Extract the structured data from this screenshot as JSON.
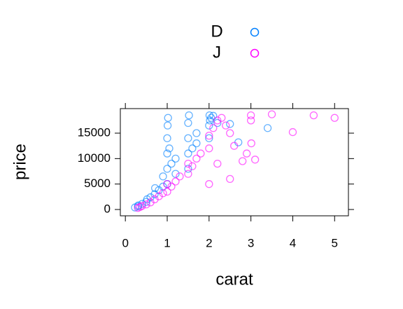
{
  "chart_data": {
    "type": "scatter",
    "x_label": "carat",
    "y_label": "price",
    "xlim": [
      -0.12,
      5.33
    ],
    "ylim": [
      -1240,
      19820
    ],
    "xticks": [
      0,
      1,
      2,
      3,
      4,
      5
    ],
    "yticks": [
      0,
      5000,
      10000,
      15000
    ],
    "series": [
      {
        "name": "D",
        "color": "#0080ff",
        "x": [
          0.23,
          0.3,
          0.31,
          0.4,
          0.5,
          0.52,
          0.6,
          0.7,
          0.71,
          0.8,
          0.9,
          0.9,
          1.0,
          1.0,
          1.0,
          1.0,
          1.01,
          1.02,
          1.05,
          1.1,
          1.2,
          1.2,
          1.5,
          1.5,
          1.5,
          1.5,
          1.52,
          1.6,
          1.7,
          1.7,
          2.0,
          2.0,
          2.01,
          2.02,
          2.05,
          2.1,
          2.2,
          2.5,
          2.7,
          3.4
        ],
        "values": [
          400,
          600,
          800,
          1100,
          1500,
          2000,
          2400,
          3000,
          4200,
          3800,
          4500,
          6500,
          5000,
          8000,
          11000,
          14000,
          16500,
          18000,
          12000,
          9000,
          10000,
          7000,
          8000,
          11000,
          14000,
          17000,
          18500,
          12000,
          13000,
          15000,
          14000,
          16500,
          18500,
          17500,
          18000,
          18400,
          17000,
          16800,
          13200,
          16000
        ]
      },
      {
        "name": "J",
        "color": "#ff00ff",
        "x": [
          0.3,
          0.35,
          0.4,
          0.5,
          0.6,
          0.7,
          0.8,
          0.9,
          1.0,
          1.0,
          1.1,
          1.2,
          1.3,
          1.5,
          1.5,
          1.6,
          1.7,
          1.8,
          2.0,
          2.0,
          2.0,
          2.1,
          2.2,
          2.3,
          2.4,
          2.5,
          2.5,
          2.8,
          2.9,
          3.0,
          3.0,
          3.01,
          3.1,
          3.5,
          4.0,
          4.5,
          5.0,
          2.2,
          2.6
        ],
        "values": [
          300,
          500,
          700,
          1000,
          1400,
          2000,
          2600,
          3200,
          3500,
          5000,
          4500,
          5500,
          6500,
          7000,
          9000,
          8500,
          10000,
          11000,
          12000,
          14500,
          5000,
          16000,
          17500,
          18000,
          16500,
          15000,
          6000,
          9500,
          11000,
          17500,
          18500,
          13000,
          9800,
          18700,
          15200,
          18500,
          18000,
          9000,
          12500
        ]
      }
    ]
  }
}
